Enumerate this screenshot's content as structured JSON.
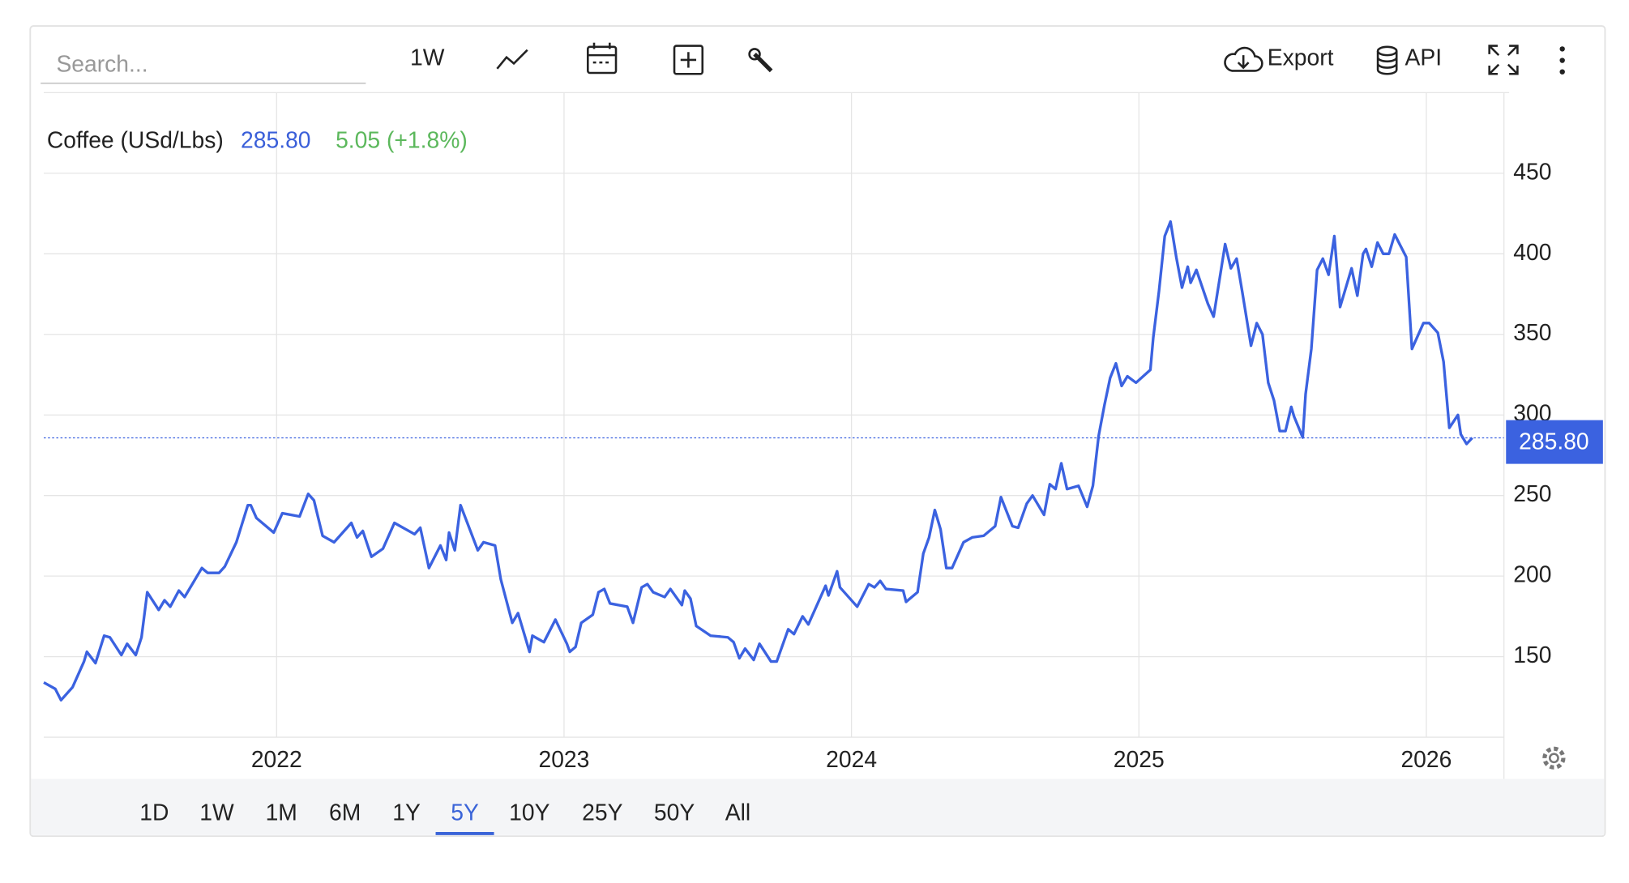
{
  "toolbar": {
    "search_placeholder": "Search...",
    "interval": "1W",
    "export": "Export",
    "api": "API"
  },
  "ranges": {
    "items": [
      "1D",
      "1W",
      "1M",
      "6M",
      "1Y",
      "5Y",
      "10Y",
      "25Y",
      "50Y",
      "All"
    ],
    "active": 5
  },
  "chart_data": {
    "type": "line",
    "title": "Coffee (USd/Lbs)",
    "price": "285.80",
    "change": "5.05 (+1.8%)",
    "change_color": "#5cb85c",
    "price_color": "#3a5fd9",
    "x": [
      2021.19,
      2021.23,
      2021.25,
      2021.29,
      2021.33,
      2021.34,
      2021.37,
      2021.4,
      2021.42,
      2021.46,
      2021.48,
      2021.51,
      2021.53,
      2021.55,
      2021.59,
      2021.61,
      2021.63,
      2021.66,
      2021.68,
      2021.74,
      2021.76,
      2021.8,
      2021.82,
      2021.86,
      2021.9,
      2021.91,
      2021.93,
      2021.99,
      2022.02,
      2022.08,
      2022.11,
      2022.13,
      2022.16,
      2022.2,
      2022.26,
      2022.28,
      2022.3,
      2022.33,
      2022.37,
      2022.41,
      2022.48,
      2022.5,
      2022.53,
      2022.57,
      2022.59,
      2022.6,
      2022.62,
      2022.64,
      2022.7,
      2022.72,
      2022.76,
      2022.78,
      2022.82,
      2022.84,
      2022.88,
      2022.89,
      2022.93,
      2022.97,
      2023.01,
      2023.02,
      2023.04,
      2023.06,
      2023.1,
      2023.12,
      2023.14,
      2023.16,
      2023.22,
      2023.24,
      2023.27,
      2023.29,
      2023.31,
      2023.35,
      2023.37,
      2023.41,
      2023.42,
      2023.44,
      2023.46,
      2023.51,
      2023.57,
      2023.59,
      2023.61,
      2023.63,
      2023.66,
      2023.68,
      2023.72,
      2023.74,
      2023.78,
      2023.8,
      2023.83,
      2023.85,
      2023.91,
      2023.92,
      2023.95,
      2023.96,
      2024.02,
      2024.06,
      2024.08,
      2024.1,
      2024.12,
      2024.18,
      2024.19,
      2024.23,
      2024.25,
      2024.27,
      2024.29,
      2024.31,
      2024.33,
      2024.35,
      2024.39,
      2024.42,
      2024.46,
      2024.5,
      2024.52,
      2024.56,
      2024.58,
      2024.61,
      2024.63,
      2024.67,
      2024.69,
      2024.71,
      2024.73,
      2024.75,
      2024.79,
      2024.82,
      2024.84,
      2024.86,
      2024.88,
      2024.9,
      2024.92,
      2024.94,
      2024.96,
      2024.99,
      2025.04,
      2025.05,
      2025.07,
      2025.09,
      2025.11,
      2025.13,
      2025.15,
      2025.17,
      2025.18,
      2025.2,
      2025.24,
      2025.26,
      2025.3,
      2025.32,
      2025.34,
      2025.36,
      2025.39,
      2025.41,
      2025.43,
      2025.45,
      2025.47,
      2025.49,
      2025.51,
      2025.53,
      2025.54,
      2025.57,
      2025.58,
      2025.6,
      2025.62,
      2025.64,
      2025.66,
      2025.68,
      2025.7,
      2025.74,
      2025.76,
      2025.78,
      2025.79,
      2025.81,
      2025.83,
      2025.85,
      2025.87,
      2025.89,
      2025.93,
      2025.95,
      2025.99,
      2026.01,
      2026.04,
      2026.06,
      2026.08,
      2026.11,
      2026.12,
      2026.14,
      2026.16
    ],
    "series": [
      {
        "name": "Coffee (USd/Lbs)",
        "color": "#3b62e0",
        "values": [
          134,
          130,
          123,
          131,
          147,
          153,
          146,
          163,
          162,
          151,
          158,
          151,
          162,
          190,
          179,
          185,
          181,
          191,
          187,
          205,
          202,
          202,
          206,
          221,
          244,
          244,
          236,
          227,
          239,
          237,
          251,
          247,
          225,
          221,
          233,
          224,
          228,
          212,
          217,
          233,
          226,
          230,
          205,
          219,
          210,
          227,
          216,
          244,
          216,
          221,
          219,
          198,
          171,
          177,
          153,
          163,
          159,
          173,
          158,
          153,
          156,
          171,
          176,
          190,
          192,
          183,
          181,
          171,
          193,
          195,
          190,
          187,
          192,
          182,
          191,
          186,
          169,
          163,
          162,
          159,
          149,
          155,
          148,
          158,
          147,
          147,
          167,
          164,
          175,
          170,
          194,
          188,
          203,
          193,
          181,
          195,
          193,
          197,
          192,
          191,
          184,
          190,
          214,
          224,
          241,
          229,
          205,
          205,
          221,
          224,
          225,
          231,
          249,
          231,
          230,
          245,
          250,
          238,
          257,
          254,
          270,
          254,
          256,
          243,
          256,
          287,
          306,
          323,
          332,
          318,
          324,
          320,
          328,
          348,
          377,
          411,
          420,
          398,
          379,
          392,
          382,
          390,
          369,
          361,
          406,
          391,
          397,
          376,
          343,
          357,
          350,
          320,
          309,
          290,
          290,
          305,
          299,
          286,
          313,
          341,
          390,
          397,
          387,
          411,
          367,
          391,
          374,
          400,
          403,
          392,
          407,
          400,
          400,
          412,
          398,
          341,
          357,
          357,
          351,
          333,
          292,
          300,
          288,
          282,
          285.8
        ]
      }
    ],
    "xlim": [
      2021.19,
      2026.27
    ],
    "xticks": [
      2022,
      2023,
      2024,
      2025,
      2026
    ],
    "ylim": [
      100,
      500
    ],
    "yticks": [
      150,
      200,
      250,
      300,
      350,
      400,
      450
    ],
    "grid": true
  }
}
